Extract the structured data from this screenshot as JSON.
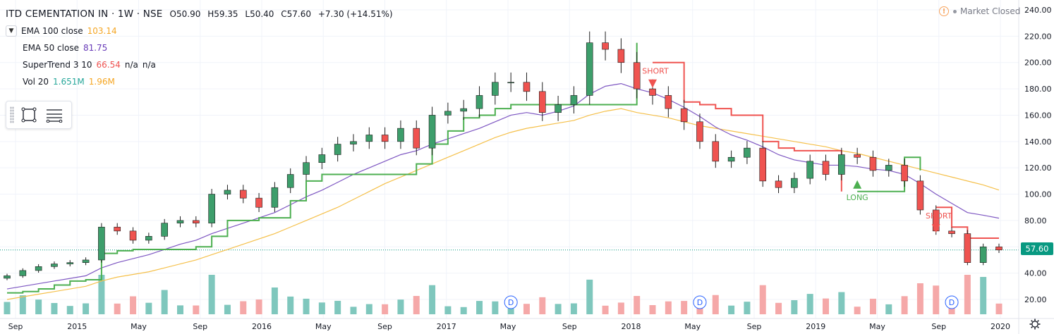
{
  "header": {
    "symbol": "ITD CEMENTATION IN · 1W · NSE",
    "open": "O50.90",
    "high": "H59.35",
    "low": "L50.40",
    "close": "C57.60",
    "change": "+7.30 (+14.51%)"
  },
  "indicators": [
    {
      "name": "EMA 100 close",
      "values": [
        "103.14"
      ],
      "color": "#f5a623"
    },
    {
      "name": "EMA 50 close",
      "values": [
        "81.75"
      ],
      "color": "#673ab7"
    },
    {
      "name": "SuperTrend 3 10",
      "values": [
        "66.54",
        "n/a",
        "n/a"
      ],
      "color": "#ef5350"
    },
    {
      "name": "Vol 20",
      "values": [
        "1.651M",
        "1.96M"
      ],
      "color": "#26a69a"
    }
  ],
  "market_status": "Market Closed",
  "last_price_label": "57.60",
  "icons": {
    "collapse": "chevron-down-icon",
    "tool1": "rectangle-tool-icon",
    "tool2": "horizontal-lines-tool-icon",
    "status": "warning-icon",
    "goto": "gear-icon"
  },
  "colors": {
    "up": "#3d9e6b",
    "down": "#ef5350",
    "ema100": "#f5c04a",
    "ema50": "#7e57c2",
    "supertrend_up": "#4caf50",
    "supertrend_down": "#ef5350",
    "vol_up": "#7fc7bd",
    "vol_down": "#f5a8a8",
    "grid": "#f0f3fa"
  },
  "chart_data": {
    "type": "line",
    "title": "ITD CEMENTATION IN · 1W · NSE",
    "x_tick_labels": [
      "Sep",
      "2015",
      "May",
      "Sep",
      "2016",
      "May",
      "Sep",
      "2017",
      "May",
      "Sep",
      "2018",
      "May",
      "Sep",
      "2019",
      "May",
      "Sep",
      "2020"
    ],
    "y_ticks": [
      20,
      40,
      60,
      80,
      100,
      120,
      140,
      160,
      180,
      200,
      220,
      240
    ],
    "ylim": [
      10,
      245
    ],
    "x_dates": [
      "2014-09",
      "2014-10",
      "2014-11",
      "2014-12",
      "2015-01",
      "2015-02",
      "2015-03",
      "2015-04",
      "2015-05",
      "2015-06",
      "2015-07",
      "2015-08",
      "2015-09",
      "2015-10",
      "2015-11",
      "2015-12",
      "2016-01",
      "2016-02",
      "2016-03",
      "2016-04",
      "2016-05",
      "2016-06",
      "2016-07",
      "2016-08",
      "2016-09",
      "2016-10",
      "2016-11",
      "2016-12",
      "2017-01",
      "2017-02",
      "2017-03",
      "2017-04",
      "2017-05",
      "2017-06",
      "2017-07",
      "2017-08",
      "2017-09",
      "2017-10",
      "2017-11",
      "2017-12",
      "2018-01",
      "2018-02",
      "2018-03",
      "2018-04",
      "2018-05",
      "2018-06",
      "2018-07",
      "2018-08",
      "2018-09",
      "2018-10",
      "2018-11",
      "2018-12",
      "2019-01",
      "2019-02",
      "2019-03",
      "2019-04",
      "2019-05",
      "2019-06",
      "2019-07",
      "2019-08",
      "2019-09",
      "2019-10",
      "2019-11",
      "2019-12"
    ],
    "series": [
      {
        "name": "ITD CEMENTATION IN",
        "values": [
          38,
          42,
          45,
          47,
          48,
          50,
          75,
          72,
          65,
          68,
          78,
          80,
          78,
          100,
          103,
          97,
          90,
          105,
          115,
          124,
          130,
          138,
          140,
          145,
          140,
          150,
          135,
          160,
          163,
          165,
          175,
          185,
          185,
          178,
          162,
          168,
          175,
          215,
          210,
          200,
          180,
          175,
          165,
          155,
          140,
          125,
          128,
          135,
          110,
          105,
          112,
          125,
          115,
          130,
          128,
          118,
          122,
          110,
          88,
          72,
          70,
          48,
          60,
          57.6
        ]
      },
      {
        "name": "EMA 100 close",
        "values": [
          20,
          22,
          24,
          26,
          28,
          30,
          34,
          37,
          39,
          41,
          44,
          47,
          50,
          54,
          58,
          62,
          66,
          70,
          75,
          80,
          85,
          90,
          96,
          102,
          108,
          113,
          118,
          123,
          128,
          133,
          138,
          143,
          147,
          150,
          152,
          154,
          156,
          160,
          163,
          165,
          162,
          160,
          158,
          155,
          152,
          150,
          148,
          146,
          144,
          142,
          140,
          138,
          136,
          133,
          131,
          128,
          125,
          122,
          119,
          116,
          113,
          110,
          107,
          103.14
        ]
      },
      {
        "name": "EMA 50 close",
        "values": [
          28,
          30,
          32,
          34,
          36,
          38,
          44,
          48,
          51,
          54,
          58,
          62,
          65,
          70,
          74,
          78,
          82,
          86,
          92,
          98,
          103,
          109,
          115,
          120,
          125,
          130,
          133,
          138,
          142,
          146,
          150,
          155,
          160,
          162,
          160,
          163,
          167,
          176,
          182,
          184,
          180,
          177,
          172,
          166,
          159,
          151,
          145,
          141,
          136,
          130,
          126,
          124,
          122,
          122,
          121,
          119,
          118,
          115,
          108,
          100,
          93,
          86,
          84,
          81.75
        ]
      },
      {
        "name": "SuperTrend 3 10",
        "values": [
          25,
          26,
          28,
          31,
          34,
          35,
          55,
          57,
          58,
          58,
          58,
          58,
          60,
          68,
          80,
          80,
          82,
          82,
          95,
          110,
          115,
          115,
          115,
          115,
          115,
          115,
          123,
          138,
          148,
          158,
          160,
          165,
          168,
          168,
          168,
          168,
          168,
          168,
          168,
          168,
          215,
          200,
          200,
          170,
          168,
          165,
          160,
          160,
          140,
          135,
          133,
          133,
          133,
          102,
          102,
          102,
          102,
          128,
          118,
          90,
          75,
          66.54,
          66.54,
          66.54
        ]
      }
    ],
    "volume_ticks": [
      20
    ],
    "annotations": [
      {
        "text": "SHORT",
        "date": "2018-02"
      },
      {
        "text": "LONG",
        "date": "2019-03"
      },
      {
        "text": "SHORT",
        "date": "2019-08"
      },
      {
        "text": "D",
        "date": "2017-05"
      },
      {
        "text": "D",
        "date": "2018-05"
      },
      {
        "text": "D",
        "date": "2019-09"
      }
    ],
    "grid": true,
    "legend": "top-left"
  }
}
